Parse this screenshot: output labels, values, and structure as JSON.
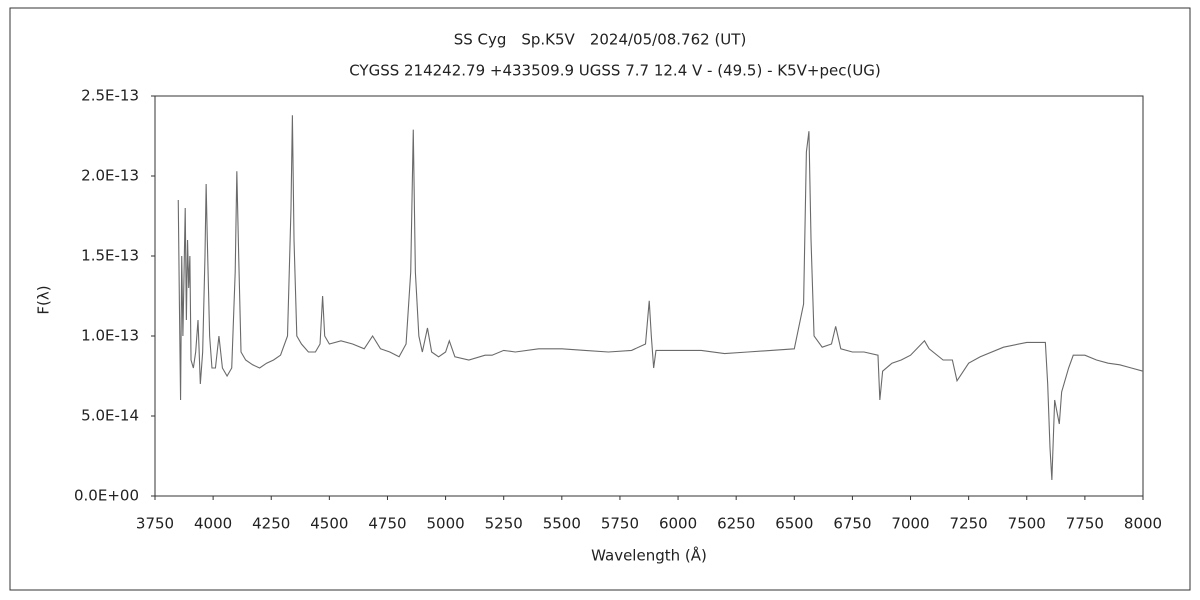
{
  "chart_data": {
    "type": "line",
    "title": "SS Cyg　Sp.K5V　2024/05/08.762 (UT)",
    "subtitle": "CYGSS 214242.79 +433509.9 UGSS 7.7 12.4 V - (49.5) - K5V+pec(UG)",
    "x_label": "Wavelength (Å)",
    "y_label": "F(λ)",
    "xlim": [
      3750,
      8000
    ],
    "xticks": [
      3750,
      4000,
      4250,
      4500,
      4750,
      5000,
      5250,
      5500,
      5750,
      6000,
      6250,
      6500,
      6750,
      7000,
      7250,
      7500,
      7750,
      8000
    ],
    "ylim": [
      0,
      2.5e-13
    ],
    "yticks": [
      {
        "value": 0,
        "label": "0.0E+00"
      },
      {
        "value": 5e-14,
        "label": "5.0E-14"
      },
      {
        "value": 1e-13,
        "label": "1.0E-13"
      },
      {
        "value": 1.5e-13,
        "label": "1.5E-13"
      },
      {
        "value": 2e-13,
        "label": "2.0E-13"
      },
      {
        "value": 2.5e-13,
        "label": "2.5E-13"
      }
    ],
    "grid": false,
    "series": [
      {
        "color": "#6a6a6a",
        "x": [
          3850,
          3855,
          3860,
          3865,
          3870,
          3880,
          3885,
          3890,
          3895,
          3900,
          3905,
          3915,
          3925,
          3935,
          3945,
          3955,
          3965,
          3970,
          3975,
          3985,
          3995,
          4010,
          4025,
          4040,
          4060,
          4080,
          4095,
          4102,
          4110,
          4120,
          4140,
          4170,
          4200,
          4230,
          4260,
          4290,
          4320,
          4335,
          4341,
          4348,
          4360,
          4380,
          4410,
          4440,
          4460,
          4471,
          4480,
          4500,
          4550,
          4600,
          4650,
          4686,
          4720,
          4760,
          4800,
          4830,
          4850,
          4861,
          4870,
          4885,
          4900,
          4922,
          4940,
          4970,
          5000,
          5016,
          5040,
          5100,
          5170,
          5200,
          5250,
          5300,
          5400,
          5500,
          5600,
          5700,
          5800,
          5860,
          5876,
          5885,
          5895,
          5905,
          6000,
          6100,
          6200,
          6300,
          6400,
          6500,
          6540,
          6552,
          6563,
          6572,
          6585,
          6620,
          6660,
          6678,
          6700,
          6750,
          6800,
          6860,
          6868,
          6880,
          6920,
          6960,
          7000,
          7060,
          7080,
          7140,
          7180,
          7200,
          7250,
          7300,
          7400,
          7500,
          7580,
          7590,
          7600,
          7608,
          7620,
          7640,
          7650,
          7680,
          7700,
          7750,
          7800,
          7850,
          7900,
          7950,
          8000
        ],
        "values": [
          1.85e-13,
          1.2e-13,
          6e-14,
          1.5e-13,
          1e-13,
          1.8e-13,
          1.1e-13,
          1.6e-13,
          1.3e-13,
          1.5e-13,
          8.5e-14,
          8e-14,
          9e-14,
          1.1e-13,
          7e-14,
          9e-14,
          1.5e-13,
          1.95e-13,
          1.6e-13,
          1e-13,
          8e-14,
          8e-14,
          1e-13,
          8e-14,
          7.5e-14,
          8e-14,
          1.4e-13,
          2.03e-13,
          1.5e-13,
          9e-14,
          8.5e-14,
          8.2e-14,
          8e-14,
          8.3e-14,
          8.5e-14,
          8.8e-14,
          1e-13,
          1.8e-13,
          2.38e-13,
          1.6e-13,
          1e-13,
          9.5e-14,
          9e-14,
          9e-14,
          9.5e-14,
          1.25e-13,
          1e-13,
          9.5e-14,
          9.7e-14,
          9.5e-14,
          9.2e-14,
          1e-13,
          9.2e-14,
          9e-14,
          8.7e-14,
          9.5e-14,
          1.4e-13,
          2.29e-13,
          1.4e-13,
          1e-13,
          9e-14,
          1.05e-13,
          9e-14,
          8.7e-14,
          9e-14,
          9.7e-14,
          8.7e-14,
          8.5e-14,
          8.8e-14,
          8.8e-14,
          9.1e-14,
          9e-14,
          9.2e-14,
          9.2e-14,
          9.1e-14,
          9e-14,
          9.1e-14,
          9.5e-14,
          1.22e-13,
          1e-13,
          8e-14,
          9.1e-14,
          9.1e-14,
          9.1e-14,
          8.9e-14,
          9e-14,
          9.1e-14,
          9.2e-14,
          1.2e-13,
          2.15e-13,
          2.28e-13,
          1.6e-13,
          1e-13,
          9.3e-14,
          9.5e-14,
          1.06e-13,
          9.2e-14,
          9e-14,
          9e-14,
          8.8e-14,
          6e-14,
          7.8e-14,
          8.3e-14,
          8.5e-14,
          8.8e-14,
          9.7e-14,
          9.2e-14,
          8.5e-14,
          8.5e-14,
          7.2e-14,
          8.3e-14,
          8.7e-14,
          9.3e-14,
          9.6e-14,
          9.6e-14,
          7e-14,
          3e-14,
          1e-14,
          6e-14,
          4.5e-14,
          6.5e-14,
          8e-14,
          8.8e-14,
          8.8e-14,
          8.5e-14,
          8.3e-14,
          8.2e-14,
          8e-14,
          7.8e-14
        ]
      }
    ]
  }
}
